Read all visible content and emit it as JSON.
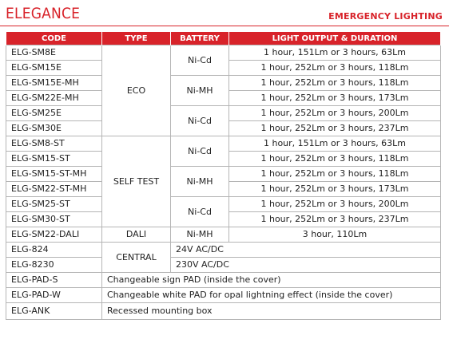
{
  "header": {
    "brand": "ELEGANCE",
    "section": "EMERGENCY LIGHTING"
  },
  "table": {
    "columns": [
      "CODE",
      "TYPE",
      "BATTERY",
      "LIGHT OUTPUT & DURATION"
    ],
    "rows": [
      {
        "code": "ELG-SM8E",
        "light": "1 hour, 151Lm or 3 hours, 63Lm"
      },
      {
        "code": "ELG-SM15E",
        "light": "1 hour, 252Lm or 3 hours, 118Lm"
      },
      {
        "code": "ELG-SM15E-MH",
        "light": "1 hour, 252Lm or 3 hours, 118Lm"
      },
      {
        "code": "ELG-SM22E-MH",
        "light": "1 hour, 252Lm or 3 hours, 173Lm"
      },
      {
        "code": "ELG-SM25E",
        "light": "1 hour, 252Lm or 3 hours, 200Lm"
      },
      {
        "code": "ELG-SM30E",
        "light": "1 hour, 252Lm or 3 hours, 237Lm"
      },
      {
        "code": "ELG-SM8-ST",
        "light": "1 hour, 151Lm or 3 hours, 63Lm"
      },
      {
        "code": "ELG-SM15-ST",
        "light": "1 hour, 252Lm or 3 hours, 118Lm"
      },
      {
        "code": "ELG-SM15-ST-MH",
        "light": "1 hour, 252Lm or 3 hours, 118Lm"
      },
      {
        "code": "ELG-SM22-ST-MH",
        "light": "1 hour, 252Lm or 3 hours, 173Lm"
      },
      {
        "code": "ELG-SM25-ST",
        "light": "1 hour, 252Lm or 3 hours, 200Lm"
      },
      {
        "code": "ELG-SM30-ST",
        "light": "1 hour, 252Lm or 3 hours, 237Lm"
      },
      {
        "code": "ELG-SM22-DALI",
        "type": "DALI",
        "battery": "Ni-MH",
        "light": "3 hour, 110Lm"
      },
      {
        "code": "ELG-824",
        "voltage": "24V AC/DC"
      },
      {
        "code": "ELG-8230",
        "voltage": "230V AC/DC"
      },
      {
        "code": "ELG-PAD-S",
        "description": "Changeable sign PAD (inside the cover)"
      },
      {
        "code": "ELG-PAD-W",
        "description": "Changeable white PAD for opal lightning effect (inside the cover)"
      },
      {
        "code": "ELG-ANK",
        "description": "Recessed mounting box"
      }
    ],
    "types": {
      "eco": "ECO",
      "self_test": "SELF TEST",
      "central": "CENTRAL"
    },
    "batteries": {
      "nicd": "Ni-Cd",
      "nimh": "Ni-MH"
    }
  },
  "colors": {
    "accent": "#d8232a",
    "border": "#b5b5b5"
  }
}
